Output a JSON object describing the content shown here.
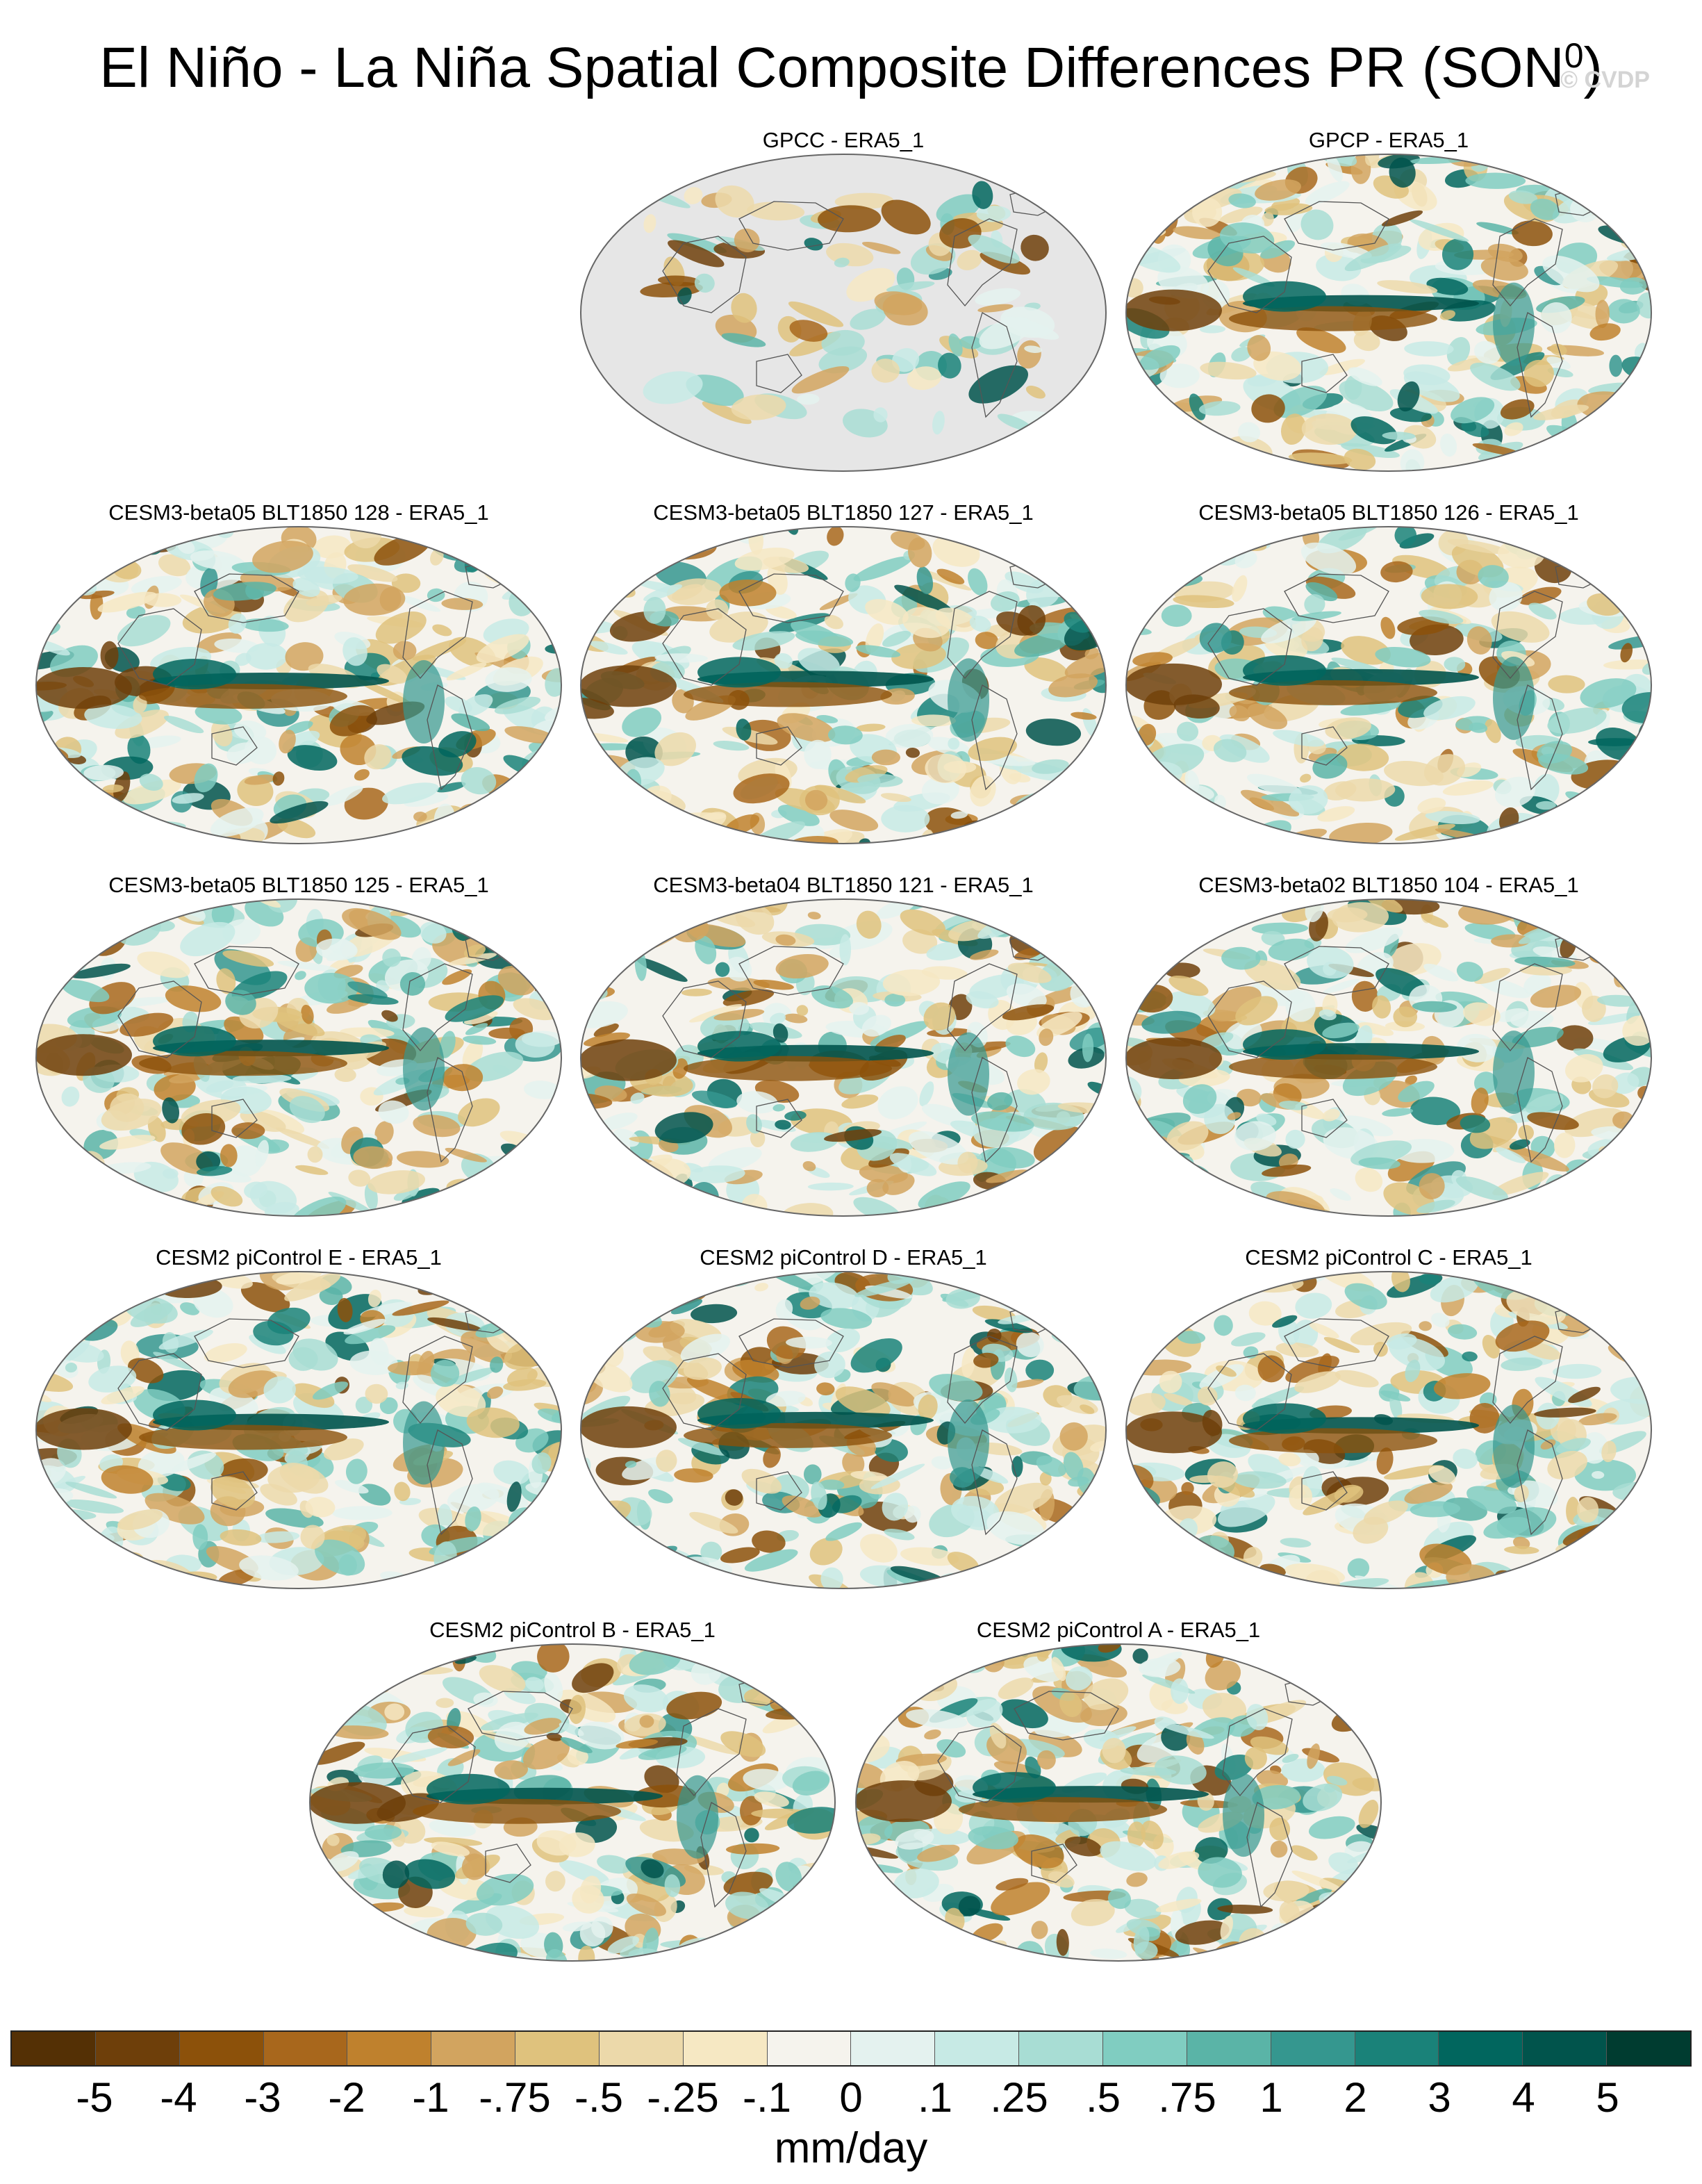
{
  "title": {
    "main": "El Niño - La Niña Spatial Composite Differences PR (SON",
    "superscript": "0",
    "close": ")"
  },
  "watermark": "© CVDP",
  "panels": [
    {
      "title": "GPCC - ERA5_1",
      "land_only": true
    },
    {
      "title": "GPCP - ERA5_1",
      "land_only": false
    },
    {
      "title": "CESM3-beta05 BLT1850 128 - ERA5_1",
      "land_only": false
    },
    {
      "title": "CESM3-beta05 BLT1850 127 - ERA5_1",
      "land_only": false
    },
    {
      "title": "CESM3-beta05 BLT1850 126 - ERA5_1",
      "land_only": false
    },
    {
      "title": "CESM3-beta05 BLT1850 125 - ERA5_1",
      "land_only": false
    },
    {
      "title": "CESM3-beta04 BLT1850 121 - ERA5_1",
      "land_only": false
    },
    {
      "title": "CESM3-beta02 BLT1850 104 - ERA5_1",
      "land_only": false
    },
    {
      "title": "CESM2 piControl E - ERA5_1",
      "land_only": false
    },
    {
      "title": "CESM2 piControl D - ERA5_1",
      "land_only": false
    },
    {
      "title": "CESM2 piControl C - ERA5_1",
      "land_only": false
    },
    {
      "title": "CESM2 piControl B - ERA5_1",
      "land_only": false
    },
    {
      "title": "CESM2 piControl A - ERA5_1",
      "land_only": false
    }
  ],
  "colorbar": {
    "labels": [
      "-5",
      "-4",
      "-3",
      "-2",
      "-1",
      "-.75",
      "-.5",
      "-.25",
      "-.1",
      "0",
      ".1",
      ".25",
      ".5",
      ".75",
      "1",
      "2",
      "3",
      "4",
      "5"
    ],
    "colors": [
      "#543005",
      "#6e3f0a",
      "#8c510a",
      "#a8671c",
      "#bf812d",
      "#d2a45f",
      "#dfc27d",
      "#ecd9aa",
      "#f6e8c3",
      "#f5f3ed",
      "#e4f2ef",
      "#c7eae5",
      "#a8ddd4",
      "#80cdc1",
      "#5ab4a7",
      "#35978f",
      "#1a8279",
      "#01665e",
      "#01544c",
      "#003c30"
    ],
    "units": "mm/day"
  }
}
